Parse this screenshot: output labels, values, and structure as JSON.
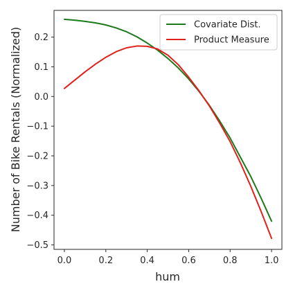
{
  "chart_data": {
    "type": "line",
    "title": "",
    "xlabel": "hum",
    "ylabel": "Number of Bike Rentals (Normalized)",
    "xlim": [
      -0.05,
      1.05
    ],
    "ylim": [
      -0.515,
      0.29
    ],
    "x_ticks": [
      0.0,
      0.2,
      0.4,
      0.6,
      0.8,
      1.0
    ],
    "x_tick_labels": [
      "0.0",
      "0.2",
      "0.4",
      "0.6",
      "0.8",
      "1.0"
    ],
    "y_ticks": [
      0.2,
      0.1,
      0.0,
      -0.1,
      -0.2,
      -0.3,
      -0.4,
      -0.5
    ],
    "y_tick_labels": [
      "0.2",
      "0.1",
      "0.0",
      "−0.1",
      "−0.2",
      "−0.3",
      "−0.4",
      "−0.5"
    ],
    "grid": false,
    "legend_position": "top-right",
    "series": [
      {
        "name": "Covariate Dist.",
        "color": "#1a7a1a",
        "x": [
          0.0,
          0.05,
          0.1,
          0.15,
          0.2,
          0.25,
          0.3,
          0.35,
          0.4,
          0.45,
          0.5,
          0.55,
          0.6,
          0.65,
          0.7,
          0.75,
          0.8,
          0.85,
          0.9,
          0.95,
          1.0
        ],
        "y": [
          0.26,
          0.257,
          0.253,
          0.248,
          0.241,
          0.231,
          0.218,
          0.201,
          0.18,
          0.156,
          0.128,
          0.096,
          0.059,
          0.017,
          -0.03,
          -0.083,
          -0.14,
          -0.205,
          -0.27,
          -0.343,
          -0.42
        ]
      },
      {
        "name": "Product Measure",
        "color": "#e0201b",
        "x": [
          0.0,
          0.05,
          0.1,
          0.15,
          0.2,
          0.25,
          0.3,
          0.35,
          0.4,
          0.45,
          0.5,
          0.55,
          0.6,
          0.65,
          0.7,
          0.75,
          0.8,
          0.85,
          0.9,
          0.95,
          1.0
        ],
        "y": [
          0.027,
          0.055,
          0.083,
          0.109,
          0.132,
          0.151,
          0.164,
          0.17,
          0.169,
          0.16,
          0.139,
          0.107,
          0.065,
          0.019,
          -0.032,
          -0.09,
          -0.152,
          -0.224,
          -0.303,
          -0.388,
          -0.478
        ]
      }
    ]
  }
}
